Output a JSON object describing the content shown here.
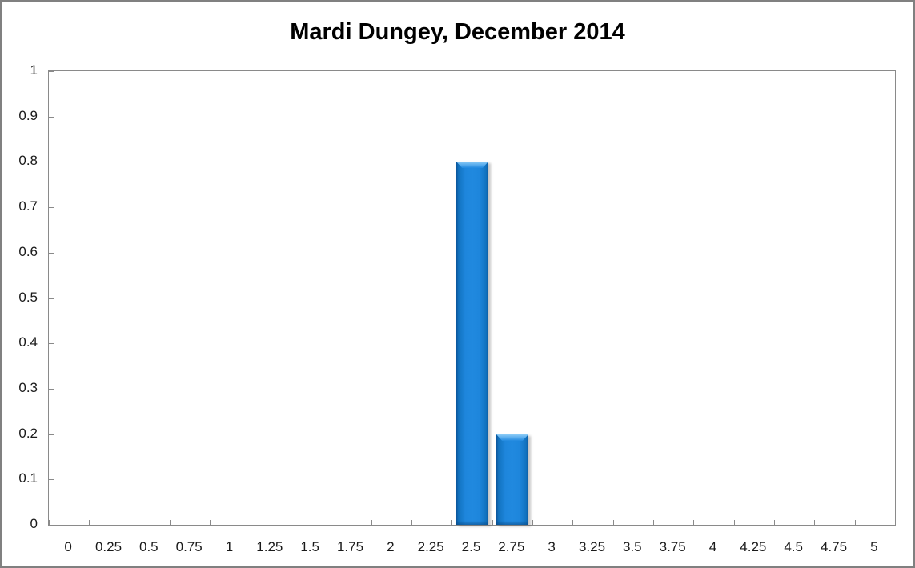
{
  "title": "Mardi Dungey, December 2014",
  "chart_data": {
    "type": "bar",
    "title": "Mardi Dungey, December 2014",
    "categories": [
      "0",
      "0.25",
      "0.5",
      "0.75",
      "1",
      "1.25",
      "1.5",
      "1.75",
      "2",
      "2.25",
      "2.5",
      "2.75",
      "3",
      "3.25",
      "3.5",
      "3.75",
      "4",
      "4.25",
      "4.5",
      "4.75",
      "5"
    ],
    "values": [
      0,
      0,
      0,
      0,
      0,
      0,
      0,
      0,
      0,
      0,
      0.8,
      0.2,
      0,
      0,
      0,
      0,
      0,
      0,
      0,
      0,
      0
    ],
    "xlabel": "",
    "ylabel": "",
    "ylim": [
      0,
      1
    ],
    "ytick_labels": [
      "1",
      "0.9",
      "0.8",
      "0.7",
      "0.6",
      "0.5",
      "0.4",
      "0.3",
      "0.2",
      "0.1",
      "0"
    ],
    "grid": false,
    "legend": false,
    "bar_fill_color": "#2089DF",
    "bar_edge_color": "#0A5398",
    "bar_highlight_color": "#8ECDF7"
  },
  "colors": {
    "outer_border": "#808080",
    "plot_border": "#8A8A8A",
    "axis_text": "#1A1A1A",
    "title_text": "#000000",
    "background": "#FFFFFF"
  }
}
